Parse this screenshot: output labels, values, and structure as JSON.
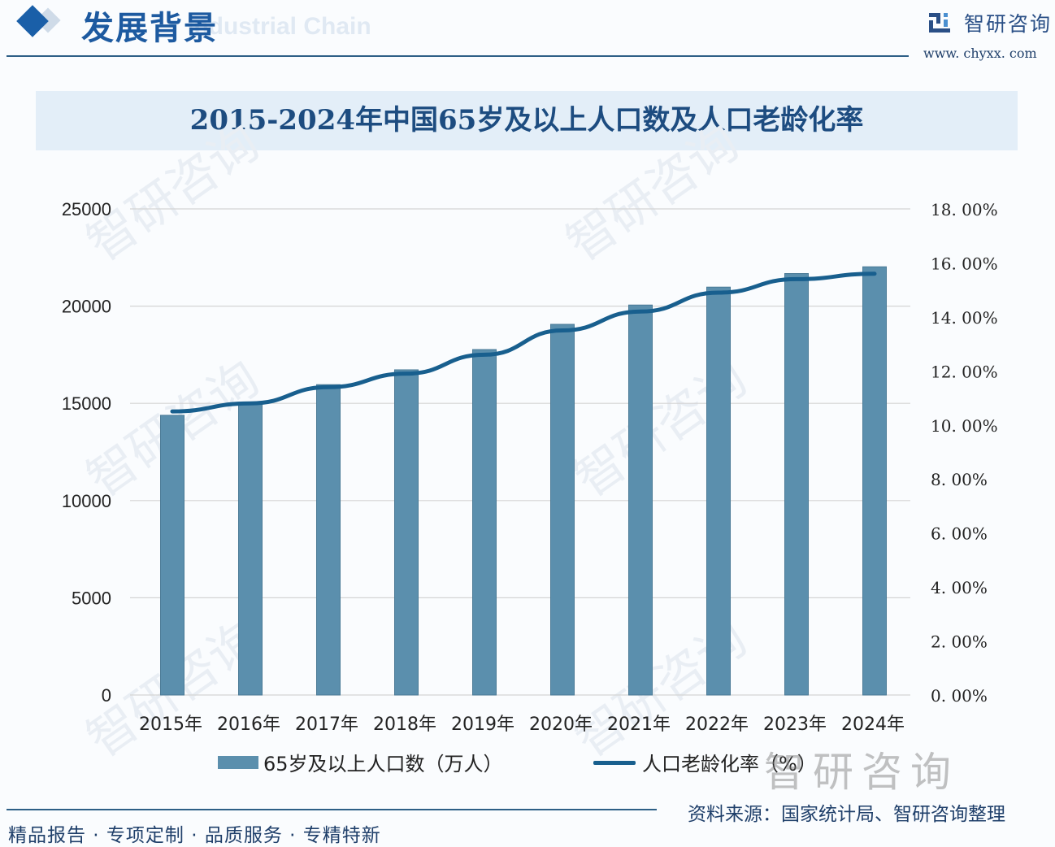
{
  "header": {
    "section_title": "发展背景",
    "section_ghost": "Industrial Chain",
    "brand_name": "智研咨询",
    "brand_url": "www. chyxx. com"
  },
  "watermark": {
    "text": "智研咨询"
  },
  "footer": {
    "slogan": "精品报告 · 专项定制 · 品质服务 · 专精特新",
    "source": "资料来源：国家统计局、智研咨询整理"
  },
  "colors": {
    "bar": "#5b8fad",
    "line": "#185f8e",
    "title": "#1d4c80",
    "grid": "#d4d4d4"
  },
  "chart_data": {
    "type": "bar",
    "title": "2015-2024年中国65岁及以上人口数及人口老龄化率",
    "categories": [
      "2015年",
      "2016年",
      "2017年",
      "2018年",
      "2019年",
      "2020年",
      "2021年",
      "2022年",
      "2023年",
      "2024年"
    ],
    "series": [
      {
        "name": "65岁及以上人口数（万人）",
        "type": "bar",
        "axis": "left",
        "values": [
          14386,
          15003,
          15961,
          16724,
          17767,
          19064,
          20056,
          20978,
          21676,
          22023
        ]
      },
      {
        "name": "人口老龄化率（%）",
        "type": "line",
        "axis": "right",
        "values": [
          10.5,
          10.8,
          11.4,
          11.9,
          12.6,
          13.5,
          14.2,
          14.9,
          15.4,
          15.6
        ]
      }
    ],
    "left_axis": {
      "ylim": [
        0,
        25000
      ],
      "ticks": [
        "0",
        "5000",
        "10000",
        "15000",
        "20000",
        "25000"
      ]
    },
    "right_axis": {
      "ylim": [
        0,
        18
      ],
      "ticks": [
        "0. 00%",
        "2. 00%",
        "4. 00%",
        "6. 00%",
        "8. 00%",
        "10. 00%",
        "12. 00%",
        "14. 00%",
        "16. 00%",
        "18. 00%"
      ]
    },
    "xlabel": "",
    "ylabel": "",
    "grid": true,
    "legend_position": "bottom"
  }
}
